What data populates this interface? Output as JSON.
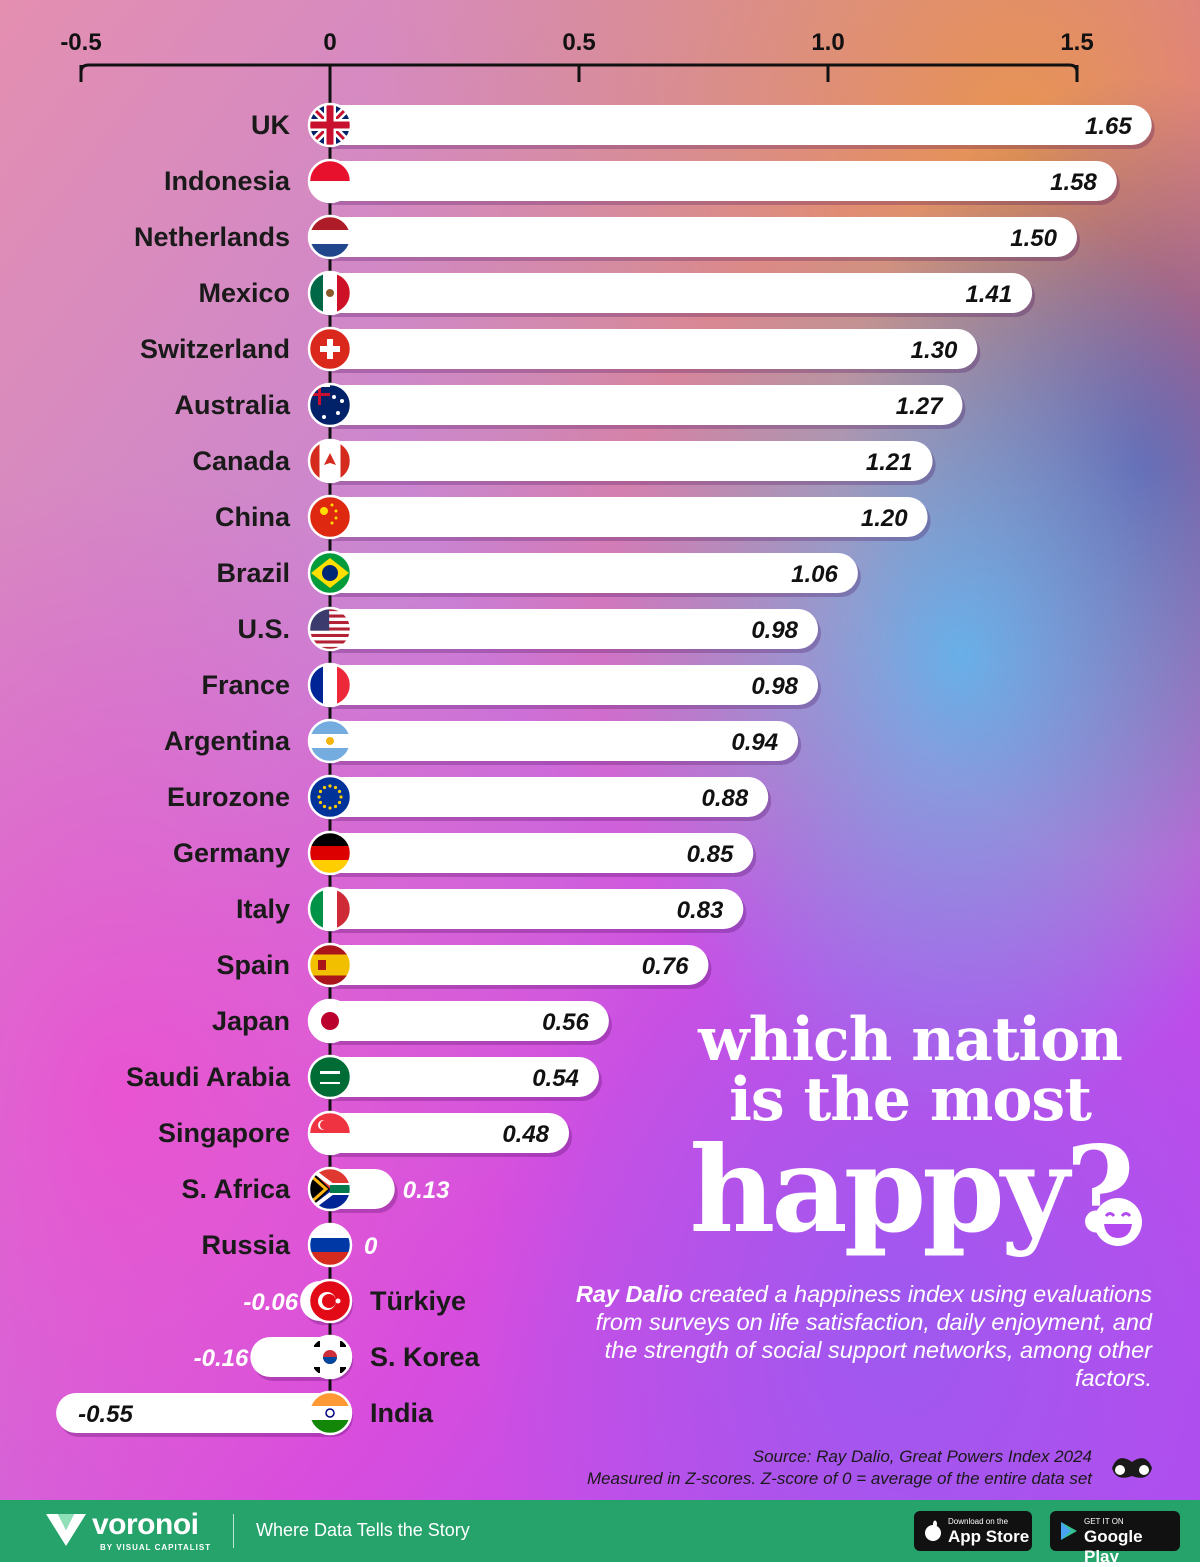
{
  "colors": {
    "bar": "#ffffff",
    "value_text": "#111111",
    "value_text_outside": "#ffffff",
    "footer": "#26a36b",
    "title_text": "#ffffff"
  },
  "chart_data": {
    "type": "bar",
    "orientation": "horizontal",
    "title": "which nation is the most happy?",
    "xlim": [
      -0.5,
      1.5
    ],
    "x_ticks": [
      "-0.5",
      "0",
      "0.5",
      "1.0",
      "1.5"
    ],
    "x_tick_values": [
      -0.5,
      0,
      0.5,
      1.0,
      1.5
    ],
    "axis_position": "top",
    "grid": false,
    "categories": [
      "UK",
      "Indonesia",
      "Netherlands",
      "Mexico",
      "Switzerland",
      "Australia",
      "Canada",
      "China",
      "Brazil",
      "U.S.",
      "France",
      "Argentina",
      "Eurozone",
      "Germany",
      "Italy",
      "Spain",
      "Japan",
      "Saudi Arabia",
      "Singapore",
      "S. Africa",
      "Russia",
      "Türkiye",
      "S. Korea",
      "India"
    ],
    "values": [
      1.65,
      1.58,
      1.5,
      1.41,
      1.3,
      1.27,
      1.21,
      1.2,
      1.06,
      0.98,
      0.98,
      0.94,
      0.88,
      0.85,
      0.83,
      0.76,
      0.56,
      0.54,
      0.48,
      0.13,
      0,
      -0.06,
      -0.16,
      -0.55
    ],
    "value_labels": [
      "1.65",
      "1.58",
      "1.50",
      "1.41",
      "1.30",
      "1.27",
      "1.21",
      "1.20",
      "1.06",
      "0.98",
      "0.98",
      "0.94",
      "0.88",
      "0.85",
      "0.83",
      "0.76",
      "0.56",
      "0.54",
      "0.48",
      "0.13",
      "0",
      "-0.06",
      "-0.16",
      "-0.55"
    ],
    "flag_icons": [
      "uk-flag-icon",
      "indonesia-flag-icon",
      "netherlands-flag-icon",
      "mexico-flag-icon",
      "switzerland-flag-icon",
      "australia-flag-icon",
      "canada-flag-icon",
      "china-flag-icon",
      "brazil-flag-icon",
      "us-flag-icon",
      "france-flag-icon",
      "argentina-flag-icon",
      "eurozone-flag-icon",
      "germany-flag-icon",
      "italy-flag-icon",
      "spain-flag-icon",
      "japan-flag-icon",
      "saudi-arabia-flag-icon",
      "singapore-flag-icon",
      "south-africa-flag-icon",
      "russia-flag-icon",
      "turkiye-flag-icon",
      "south-korea-flag-icon",
      "india-flag-icon"
    ]
  },
  "headline": {
    "line1": "which nation",
    "line2": "is the most",
    "line3": "happy?",
    "emoji_icon": "laughing-face-icon"
  },
  "description": {
    "bold": "Ray Dalio",
    "rest": " created a happiness index using evaluations from surveys on life satisfaction, daily enjoyment, and the strength of social support networks, among other factors."
  },
  "source": {
    "line1": "Source: Ray Dalio, Great Powers Index 2024",
    "line2": "Measured in Z-scores. Z-score of 0 = average of the entire data set",
    "icon": "voronoi-mustache-icon"
  },
  "footer": {
    "brand": "voronoi",
    "brand_sub": "BY VISUAL CAPITALIST",
    "tagline": "Where Data Tells the Story",
    "appstore_small": "Download on the",
    "appstore_big": "App Store",
    "googleplay_small": "GET IT ON",
    "googleplay_big": "Google Play"
  }
}
